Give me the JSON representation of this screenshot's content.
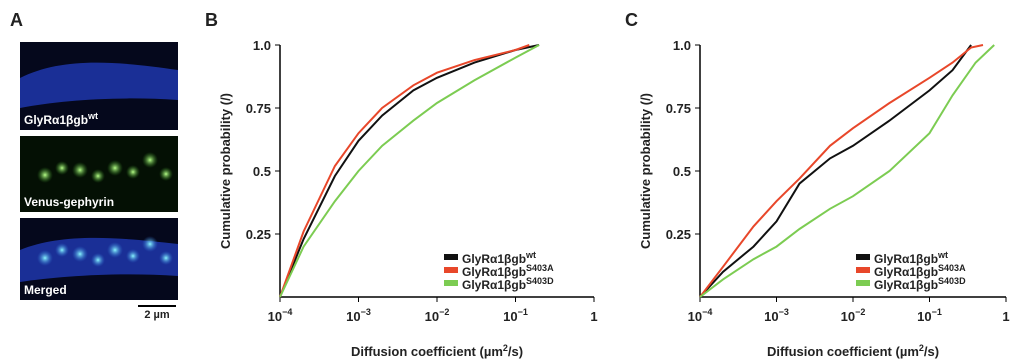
{
  "panel_a": {
    "label": "A",
    "images": [
      {
        "caption": "GlyRα1βgb",
        "caption_sup": "wt"
      },
      {
        "caption": "Venus-gephyrin"
      },
      {
        "caption": "Merged"
      }
    ],
    "scale_bar": "2 µm"
  },
  "chart_data": [
    {
      "type": "line",
      "panel": "B",
      "xscale": "log",
      "legend": "lower right",
      "x_label": [
        "Diffusion coefficient  (µm",
        "2",
        "/s)"
      ],
      "y_label": "Cumulative probability (/)",
      "xlim": [
        0.0001,
        1
      ],
      "ylim": [
        0,
        1
      ],
      "xticks": [
        {
          "value": 0.0001,
          "label": "10",
          "sup": "−4"
        },
        {
          "value": 0.001,
          "label": "10",
          "sup": "−3"
        },
        {
          "value": 0.01,
          "label": "10",
          "sup": "−2"
        },
        {
          "value": 0.1,
          "label": "10",
          "sup": "−1"
        },
        1
      ],
      "yticks": [
        0.25,
        0.5,
        0.75,
        {
          "value": 1,
          "label": "1.0"
        }
      ],
      "series": [
        {
          "name": "GlyRα1βgb",
          "name_sup": "wt",
          "color": "#111111",
          "x": [
            0.0001,
            0.0002,
            0.0005,
            0.001,
            0.002,
            0.005,
            0.01,
            0.03,
            0.1,
            0.2
          ],
          "values": [
            0,
            0.23,
            0.48,
            0.62,
            0.72,
            0.82,
            0.87,
            0.93,
            0.98,
            1
          ]
        },
        {
          "name": "GlyRα1βgb",
          "name_sup": "S403A",
          "color": "#e8472a",
          "x": [
            0.0001,
            0.0002,
            0.0005,
            0.001,
            0.002,
            0.005,
            0.01,
            0.03,
            0.1,
            0.15
          ],
          "values": [
            0,
            0.26,
            0.52,
            0.65,
            0.75,
            0.84,
            0.89,
            0.94,
            0.98,
            1
          ]
        },
        {
          "name": "GlyRα1βgb",
          "name_sup": "S403D",
          "color": "#7ccc52",
          "x": [
            0.0001,
            0.0002,
            0.0005,
            0.001,
            0.002,
            0.005,
            0.01,
            0.03,
            0.1,
            0.2
          ],
          "values": [
            0,
            0.2,
            0.38,
            0.5,
            0.6,
            0.7,
            0.77,
            0.86,
            0.95,
            1
          ]
        }
      ]
    },
    {
      "type": "line",
      "panel": "C",
      "xscale": "log",
      "legend": "lower right",
      "x_label": [
        "Diffusion coefficient  (µm",
        "2",
        "/s)"
      ],
      "y_label": "Cumulative probability (/)",
      "xlim": [
        0.0001,
        1
      ],
      "ylim": [
        0,
        1
      ],
      "xticks": [
        {
          "value": 0.0001,
          "label": "10",
          "sup": "−4"
        },
        {
          "value": 0.001,
          "label": "10",
          "sup": "−3"
        },
        {
          "value": 0.01,
          "label": "10",
          "sup": "−2"
        },
        {
          "value": 0.1,
          "label": "10",
          "sup": "−1"
        },
        1
      ],
      "yticks": [
        0.25,
        0.5,
        0.75,
        {
          "value": 1,
          "label": "1.0"
        }
      ],
      "series": [
        {
          "name": "GlyRα1βgb",
          "name_sup": "wt",
          "color": "#111111",
          "x": [
            0.0001,
            0.0002,
            0.0005,
            0.001,
            0.002,
            0.005,
            0.01,
            0.03,
            0.1,
            0.2,
            0.35
          ],
          "values": [
            0,
            0.1,
            0.2,
            0.3,
            0.45,
            0.55,
            0.6,
            0.7,
            0.82,
            0.9,
            1
          ]
        },
        {
          "name": "GlyRα1βgb",
          "name_sup": "S403A",
          "color": "#e8472a",
          "x": [
            0.0001,
            0.0002,
            0.0005,
            0.001,
            0.002,
            0.005,
            0.01,
            0.03,
            0.1,
            0.2,
            0.35,
            0.5
          ],
          "values": [
            0,
            0.12,
            0.28,
            0.38,
            0.47,
            0.6,
            0.67,
            0.77,
            0.87,
            0.93,
            0.99,
            1
          ]
        },
        {
          "name": "GlyRα1βgb",
          "name_sup": "S403D",
          "color": "#7ccc52",
          "x": [
            0.0001,
            0.0002,
            0.0005,
            0.001,
            0.002,
            0.005,
            0.01,
            0.03,
            0.1,
            0.2,
            0.4,
            0.7
          ],
          "values": [
            0,
            0.07,
            0.15,
            0.2,
            0.27,
            0.35,
            0.4,
            0.5,
            0.65,
            0.8,
            0.93,
            1
          ]
        }
      ]
    }
  ]
}
